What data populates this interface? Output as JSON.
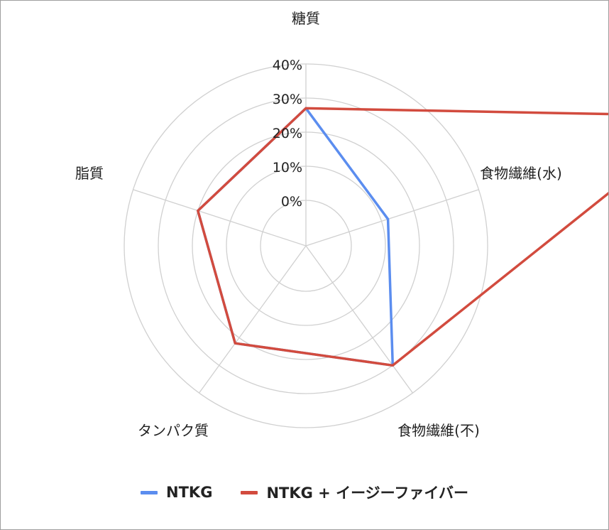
{
  "chart_data": {
    "type": "radar",
    "categories": [
      "糖質",
      "食物繊維(水)",
      "食物繊維(不)",
      "タンパク質",
      "脂質"
    ],
    "radial_ticks": [
      "0%",
      "10%",
      "20%",
      "30%",
      "40%"
    ],
    "rmax": 40,
    "series": [
      {
        "name": "NTKG",
        "color": "#5b8def",
        "values": [
          27,
          12,
          30,
          22,
          20
        ]
      },
      {
        "name": "NTKG + イージーファイバー",
        "color": "#d24b3e",
        "values": [
          27,
          110,
          30,
          22,
          20
        ]
      }
    ],
    "grid": true,
    "legend": "bottom"
  }
}
